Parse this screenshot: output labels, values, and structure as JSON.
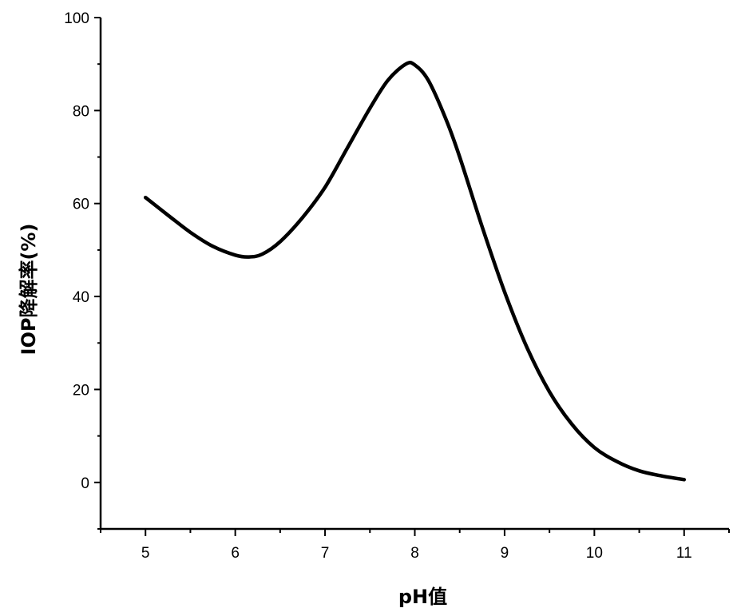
{
  "chart_data": {
    "type": "line",
    "xlabel": "pH值",
    "ylabel": "IOP降解率(%)",
    "xlim": [
      4.5,
      11.5
    ],
    "ylim": [
      -10,
      100
    ],
    "x_ticks": [
      5,
      6,
      7,
      8,
      9,
      10,
      11
    ],
    "x_tick_labels": [
      "5",
      "6",
      "7",
      "8",
      "9",
      "10",
      "11"
    ],
    "y_ticks": [
      0,
      20,
      40,
      60,
      80,
      100
    ],
    "y_tick_labels": [
      "0",
      "20",
      "40",
      "60",
      "80",
      "100"
    ],
    "grid": false,
    "series": [
      {
        "color": "#000000",
        "x": [
          5.0,
          5.25,
          5.5,
          5.75,
          6.0,
          6.15,
          6.3,
          6.5,
          6.75,
          7.0,
          7.25,
          7.5,
          7.7,
          7.9,
          8.0,
          8.15,
          8.35,
          8.5,
          8.75,
          9.0,
          9.25,
          9.5,
          9.75,
          10.0,
          10.25,
          10.5,
          10.75,
          11.0
        ],
        "y": [
          61.3,
          57.5,
          53.8,
          50.8,
          48.9,
          48.5,
          49.1,
          51.8,
          57.0,
          63.5,
          72.0,
          80.5,
          86.5,
          90.0,
          89.8,
          86.5,
          78.0,
          70.0,
          55.0,
          41.0,
          29.0,
          19.5,
          12.5,
          7.5,
          4.5,
          2.5,
          1.4,
          0.6
        ]
      }
    ]
  }
}
